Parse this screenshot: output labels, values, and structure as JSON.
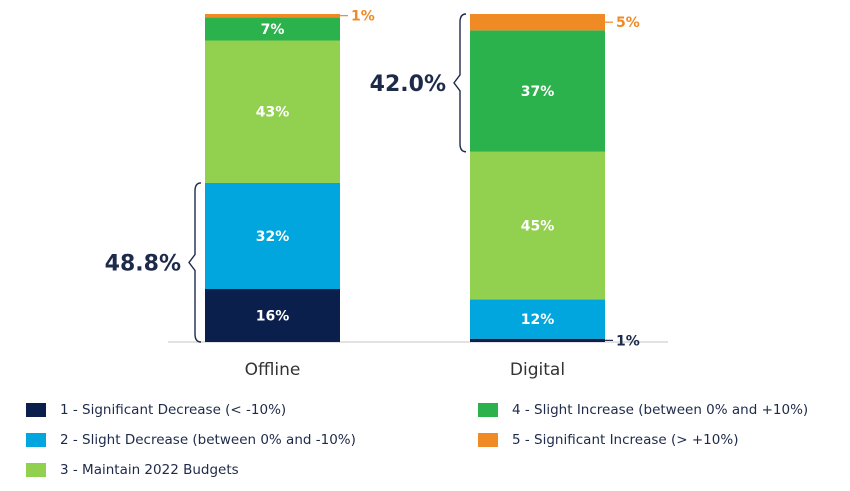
{
  "chart_data": {
    "type": "bar",
    "stacked": true,
    "categories": [
      "Offline",
      "Digital"
    ],
    "ylim": [
      0,
      100
    ],
    "series": [
      {
        "name": "1 - Significant Decrease (< -10%)",
        "color": "#0b1f4d",
        "values": [
          16,
          1
        ],
        "labels": [
          "16%",
          "1%"
        ]
      },
      {
        "name": "2 - Slight Decrease (between 0% and -10%)",
        "color": "#00a6dd",
        "values": [
          32,
          12
        ],
        "labels": [
          "32%",
          "12%"
        ]
      },
      {
        "name": "3 - Maintain 2022 Budgets",
        "color": "#92d050",
        "values": [
          43,
          45
        ],
        "labels": [
          "43%",
          "45%"
        ]
      },
      {
        "name": "4 - Slight Increase (between 0% and +10%)",
        "color": "#2bb24c",
        "values": [
          7,
          37
        ],
        "labels": [
          "7%",
          "37%"
        ]
      },
      {
        "name": "5 - Significant Increase (> +10%)",
        "color": "#f08a24",
        "values": [
          1,
          5
        ],
        "labels": [
          "1%",
          "5%"
        ]
      }
    ],
    "brackets": [
      {
        "category": "Offline",
        "label": "48.8%",
        "from_series": 0,
        "to_series": 1
      },
      {
        "category": "Digital",
        "label": "42.0%",
        "from_series": 3,
        "to_series": 4
      }
    ],
    "legend_position": "bottom",
    "grid": false
  }
}
